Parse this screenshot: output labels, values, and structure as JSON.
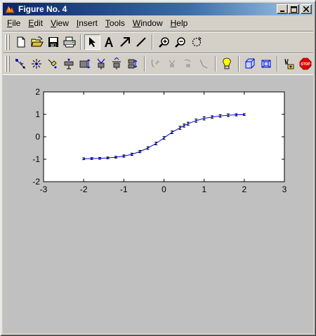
{
  "window": {
    "title": "Figure No. 4",
    "buttons": {
      "minimize": "_",
      "maximize": "□",
      "close": "✕"
    }
  },
  "menubar": {
    "items": [
      {
        "accel": "F",
        "rest": "ile"
      },
      {
        "accel": "E",
        "rest": "dit"
      },
      {
        "accel": "V",
        "rest": "iew"
      },
      {
        "accel": "I",
        "rest": "nsert"
      },
      {
        "accel": "T",
        "rest": "ools"
      },
      {
        "accel": "W",
        "rest": "indow"
      },
      {
        "accel": "H",
        "rest": "elp"
      }
    ]
  },
  "toolbar1": {
    "buttons": [
      {
        "icon": "new-file-icon"
      },
      {
        "icon": "open-folder-icon"
      },
      {
        "icon": "save-icon"
      },
      {
        "icon": "print-icon"
      },
      {
        "icon": "select-arrow-icon",
        "pressed": true
      },
      {
        "icon": "insert-text-icon",
        "glyph": "A"
      },
      {
        "icon": "insert-arrow-icon"
      },
      {
        "icon": "insert-line-icon"
      },
      {
        "icon": "zoom-in-icon"
      },
      {
        "icon": "zoom-out-icon"
      },
      {
        "icon": "rotate-icon"
      }
    ]
  },
  "toolbar2": {
    "colors": {
      "accent": "#0000cc",
      "bulb": "#ffff00",
      "stop": "#e00000"
    },
    "stop_label": "STOP"
  },
  "chart_data": {
    "type": "line",
    "xlim": [
      -3,
      3
    ],
    "ylim": [
      -2,
      2
    ],
    "xticks": [
      "-3",
      "-2",
      "-1",
      "0",
      "1",
      "2",
      "3"
    ],
    "yticks": [
      "2",
      "1",
      "0",
      "-1",
      "-2"
    ],
    "series": [
      {
        "color": "#0000ff",
        "errorbars": true,
        "x": [
          -2.0,
          -1.8,
          -1.6,
          -1.4,
          -1.2,
          -1.0,
          -0.8,
          -0.6,
          -0.4,
          -0.2,
          0.0,
          0.2,
          0.4,
          0.5,
          0.6,
          0.8,
          1.0,
          1.2,
          1.4,
          1.6,
          1.8,
          2.0
        ],
        "y": [
          -0.98,
          -0.97,
          -0.96,
          -0.94,
          -0.91,
          -0.86,
          -0.78,
          -0.66,
          -0.5,
          -0.3,
          -0.05,
          0.2,
          0.4,
          0.5,
          0.58,
          0.72,
          0.82,
          0.88,
          0.93,
          0.96,
          0.98,
          0.99
        ],
        "err": [
          0.04,
          0.04,
          0.04,
          0.04,
          0.04,
          0.05,
          0.05,
          0.05,
          0.06,
          0.06,
          0.06,
          0.06,
          0.07,
          0.07,
          0.07,
          0.07,
          0.07,
          0.06,
          0.06,
          0.06,
          0.05,
          0.04
        ]
      }
    ]
  }
}
